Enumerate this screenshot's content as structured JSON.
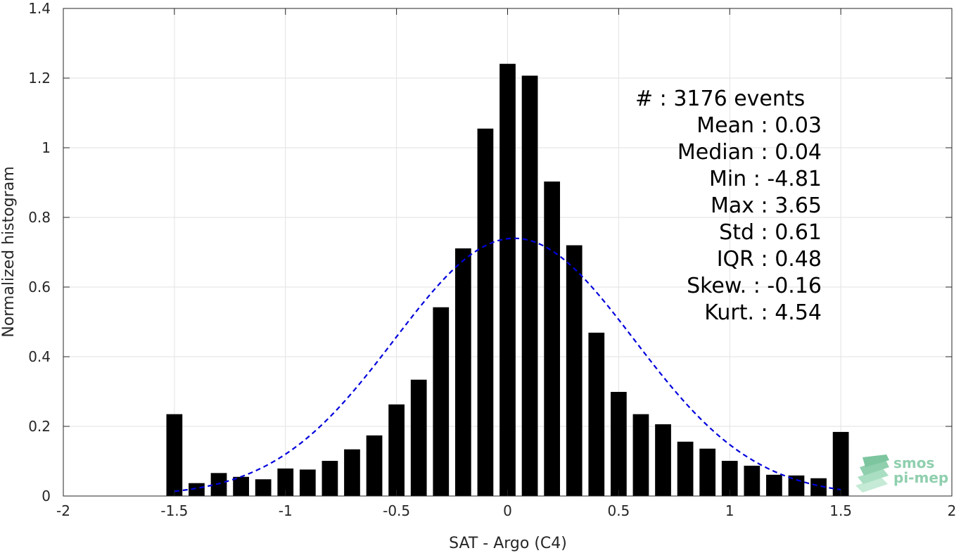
{
  "chart_data": {
    "type": "bar",
    "xlabel": "SAT - Argo (C4)",
    "ylabel": "Normalized histogram",
    "xlim": [
      -2,
      2
    ],
    "ylim": [
      0,
      1.4
    ],
    "xticks": [
      -2,
      -1.5,
      -1,
      -0.5,
      0,
      0.5,
      1,
      1.5,
      2
    ],
    "xtick_labels": [
      "-2",
      "-1.5",
      "-1",
      "-0.5",
      "0",
      "0.5",
      "1",
      "1.5",
      "2"
    ],
    "yticks": [
      0,
      0.2,
      0.4,
      0.6,
      0.8,
      1,
      1.2,
      1.4
    ],
    "ytick_labels": [
      "0",
      "0.2",
      "0.4",
      "0.6",
      "0.8",
      "1",
      "1.2",
      "1.4"
    ],
    "grid": true,
    "bar_color": "#000000",
    "bin_width": 0.1,
    "x": [
      -1.5,
      -1.4,
      -1.3,
      -1.2,
      -1.1,
      -1.0,
      -0.9,
      -0.8,
      -0.7,
      -0.6,
      -0.5,
      -0.4,
      -0.3,
      -0.2,
      -0.1,
      0.0,
      0.1,
      0.2,
      0.3,
      0.4,
      0.5,
      0.6,
      0.7,
      0.8,
      0.9,
      1.0,
      1.1,
      1.2,
      1.3,
      1.4,
      1.5
    ],
    "values": [
      0.235,
      0.037,
      0.066,
      0.055,
      0.048,
      0.079,
      0.076,
      0.101,
      0.134,
      0.174,
      0.263,
      0.334,
      0.542,
      0.711,
      1.055,
      1.241,
      1.207,
      0.903,
      0.72,
      0.469,
      0.299,
      0.235,
      0.206,
      0.156,
      0.136,
      0.101,
      0.087,
      0.061,
      0.059,
      0.051,
      0.184
    ],
    "fit_curve": {
      "style": "dashed",
      "color": "#0000dd",
      "distribution": "normal",
      "mean": 0.03,
      "std": 0.54,
      "peak": 0.74,
      "x_range": [
        -1.5,
        1.5
      ]
    },
    "stats_lines": [
      "#  : 3176 events",
      "Mean : 0.03",
      "Median : 0.04",
      "Min : -4.81",
      "Max : 3.65",
      "Std : 0.61",
      "IQR : 0.48",
      "Skew. : -0.16",
      "Kurt. : 4.54"
    ]
  },
  "logo": {
    "line1": "smos",
    "line2": "pi-mep",
    "color": "#8fcfae"
  }
}
